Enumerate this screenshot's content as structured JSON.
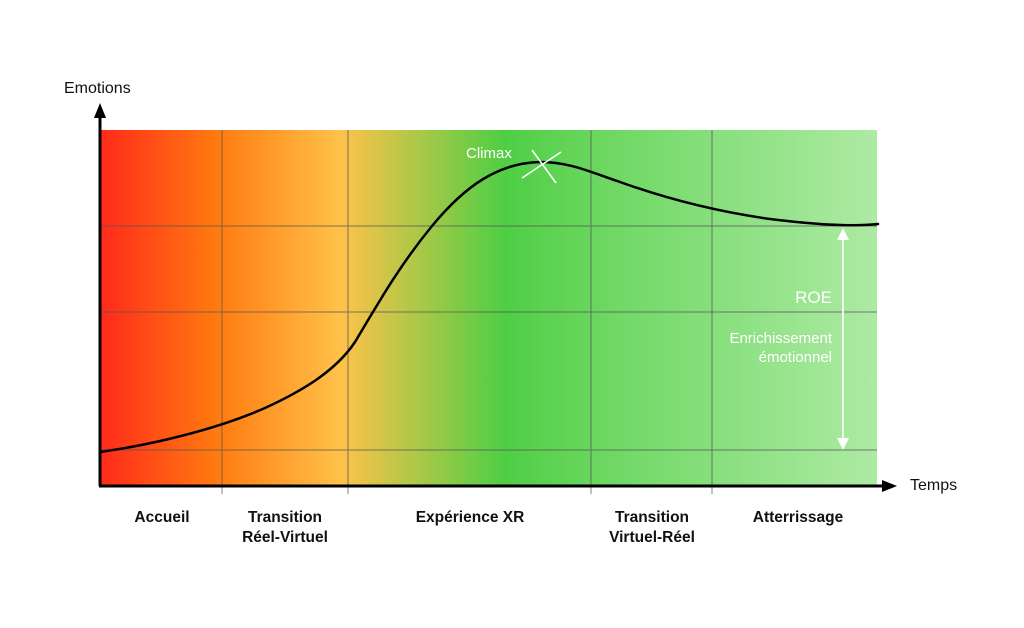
{
  "axes": {
    "y_label": "Emotions",
    "x_label": "Temps"
  },
  "phases": [
    {
      "lines": [
        "Accueil"
      ]
    },
    {
      "lines": [
        "Transition",
        "Réel-Virtuel"
      ]
    },
    {
      "lines": [
        "Expérience XR"
      ]
    },
    {
      "lines": [
        "Transition",
        "Virtuel-Réel"
      ]
    },
    {
      "lines": [
        "Atterrissage"
      ]
    }
  ],
  "annotations": {
    "climax": "Climax",
    "roe": "ROE",
    "roe_desc_lines": [
      "Enrichissement",
      "émotionnel"
    ]
  },
  "colors": {
    "gradient_red": "#ff2a1a",
    "gradient_orange": "#ff7a10",
    "gradient_yellow": "#ffc24a",
    "gradient_green": "#4fce45",
    "gradient_light_green": "#aeeaa4",
    "curve": "#000000",
    "marker": "#ffffff"
  }
}
